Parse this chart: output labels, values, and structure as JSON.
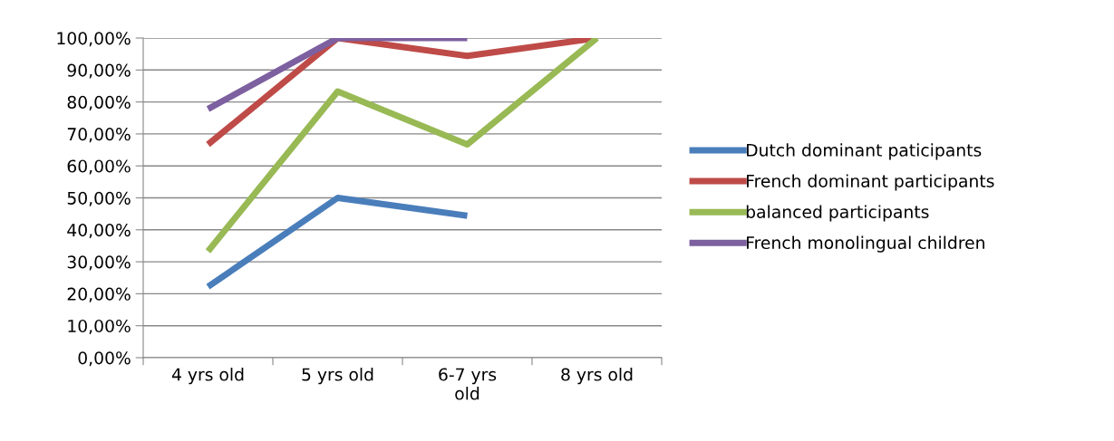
{
  "chart_data": {
    "type": "line",
    "categories": [
      "4 yrs old",
      "5 yrs old",
      "6-7 yrs old",
      "8 yrs old"
    ],
    "series": [
      {
        "name": "Dutch dominant paticipants",
        "color": "#4a7ebb",
        "values": [
          22.2,
          50,
          44.4,
          null
        ]
      },
      {
        "name": "French dominant participants",
        "color": "#be4b48",
        "values": [
          66.7,
          100,
          94.4,
          100
        ]
      },
      {
        "name": "balanced participants",
        "color": "#98b954",
        "values": [
          33.3,
          83.3,
          66.7,
          100
        ]
      },
      {
        "name": "French monolingual children",
        "color": "#7d60a0",
        "values": [
          77.8,
          100,
          100,
          null
        ]
      }
    ],
    "ylim": [
      0,
      100
    ],
    "yticks": [
      {
        "value": 0,
        "label": "0,00%"
      },
      {
        "value": 10,
        "label": "10,00%"
      },
      {
        "value": 20,
        "label": "20,00%"
      },
      {
        "value": 30,
        "label": "30,00%"
      },
      {
        "value": 40,
        "label": "40,00%"
      },
      {
        "value": 50,
        "label": "50,00%"
      },
      {
        "value": 60,
        "label": "60,00%"
      },
      {
        "value": 70,
        "label": "70,00%"
      },
      {
        "value": 80,
        "label": "80,00%"
      },
      {
        "value": 90,
        "label": "90,00%"
      },
      {
        "value": 100,
        "label": "100,00%"
      }
    ],
    "grid": "y",
    "legend": "right",
    "marker": "none",
    "line_style": "solid"
  }
}
